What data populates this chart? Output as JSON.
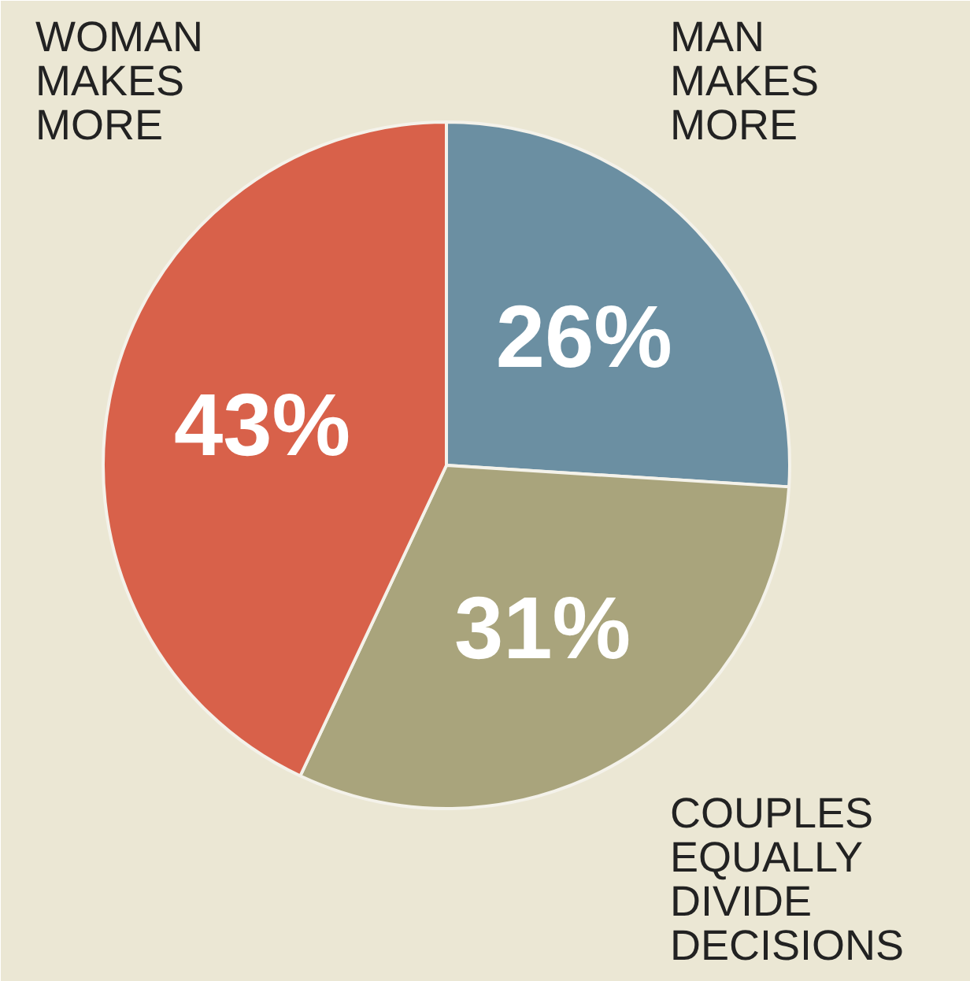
{
  "chart_data": {
    "type": "pie",
    "categories": [
      "MAN MAKES MORE",
      "COUPLES EQUALLY DIVIDE DECISIONS",
      "WOMAN MAKES MORE"
    ],
    "values": [
      26,
      31,
      43
    ],
    "colors": [
      "#6b8fa2",
      "#a9a47c",
      "#d8614a"
    ],
    "value_labels": [
      "26%",
      "31%",
      "43%"
    ]
  }
}
